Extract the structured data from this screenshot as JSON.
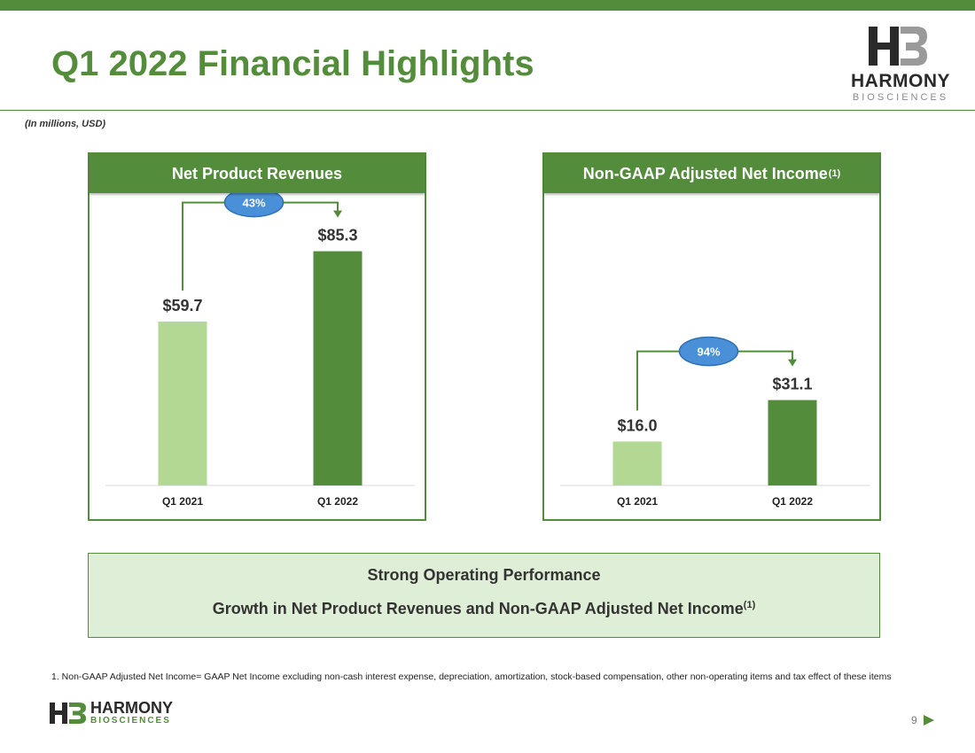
{
  "slide": {
    "title": "Q1 2022 Financial Highlights",
    "units_note": "(In millions, USD)",
    "page_number": "9"
  },
  "brand": {
    "name": "HARMONY",
    "subname": "BIOSCIENCES",
    "colors": {
      "primary_green": "#538c3a",
      "light_green": "#b3d894",
      "badge_blue": "#4a90d9",
      "summary_fill": "#dfeed6"
    }
  },
  "chart_data": [
    {
      "type": "bar",
      "title": "Net Product Revenues",
      "categories": [
        "Q1 2021",
        "Q1 2022"
      ],
      "values": [
        59.7,
        85.3
      ],
      "value_labels": [
        "$59.7",
        "$85.3"
      ],
      "bar_colors": [
        "#b3d894",
        "#538c3a"
      ],
      "growth_label": "43%",
      "ylim": [
        0,
        100
      ],
      "grid": false
    },
    {
      "type": "bar",
      "title": "Non-GAAP Adjusted Net Income",
      "title_sup": "(1)",
      "categories": [
        "Q1 2021",
        "Q1 2022"
      ],
      "values": [
        16.0,
        31.1
      ],
      "value_labels": [
        "$16.0",
        "$31.1"
      ],
      "bar_colors": [
        "#b3d894",
        "#538c3a"
      ],
      "growth_label": "94%",
      "ylim": [
        0,
        100
      ],
      "grid": false
    }
  ],
  "summary": {
    "line1": "Strong Operating Performance",
    "line2": "Growth in Net Product Revenues and Non-GAAP Adjusted Net Income",
    "line2_sup": "(1)"
  },
  "footnote": "1. Non-GAAP Adjusted Net Income= GAAP Net Income excluding non-cash interest expense, depreciation, amortization, stock-based compensation, other non-operating items and tax effect of these items"
}
